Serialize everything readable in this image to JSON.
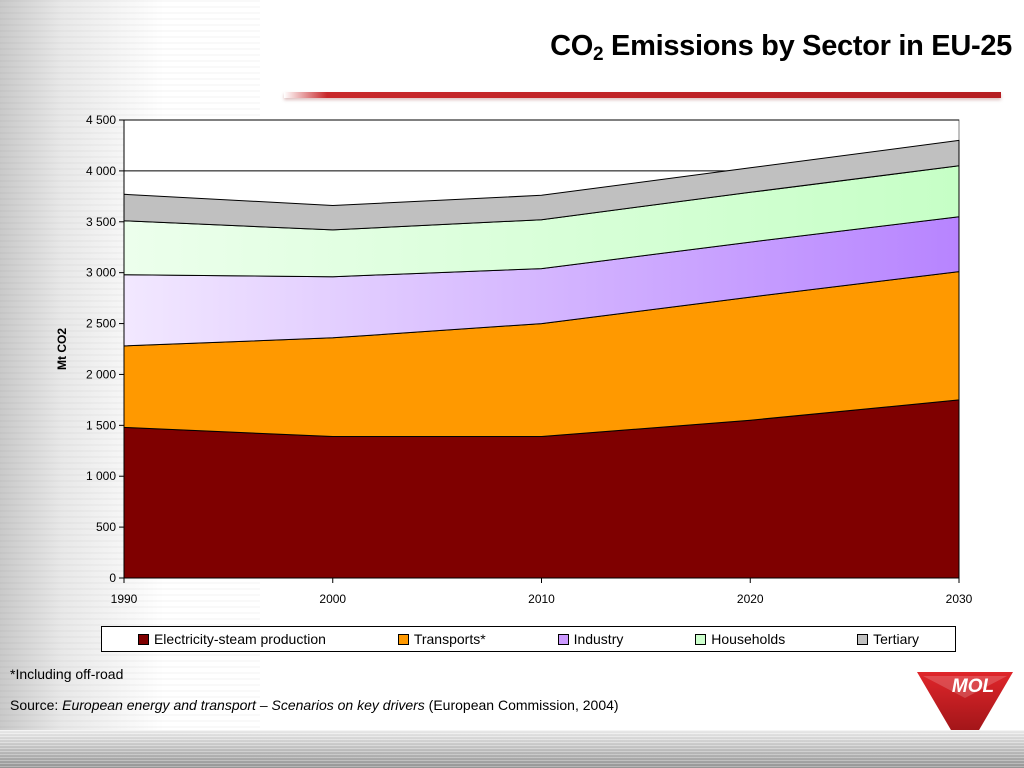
{
  "slide": {
    "title_main": "CO",
    "title_sub": "2",
    "title_rest": " Emissions by Sector in EU-25",
    "footnote": "*Including off-road",
    "source_prefix": "Source: ",
    "source_italic": "European energy and transport – Scenarios on key drivers",
    "source_suffix": " (European Commission, 2004)",
    "logo_text": "MOL"
  },
  "chart_data": {
    "type": "area",
    "stacked": true,
    "title": "",
    "xlabel": "",
    "ylabel": "Mt CO2",
    "x": [
      1990,
      2000,
      2010,
      2020,
      2030
    ],
    "x_tick_labels": [
      "1990",
      "2000",
      "2010",
      "2020",
      "2030"
    ],
    "ylim": [
      0,
      4500
    ],
    "y_ticks": [
      0,
      500,
      1000,
      1500,
      2000,
      2500,
      3000,
      3500,
      4000,
      4500
    ],
    "y_tick_labels": [
      "0",
      "500",
      "1 000",
      "1 500",
      "2 000",
      "2 500",
      "3 000",
      "3 500",
      "4 000",
      "4 500"
    ],
    "grid": "horizontal-major",
    "legend_position": "bottom",
    "series": [
      {
        "name": "Electricity-steam production",
        "color": "#7f0000",
        "values": [
          1480,
          1390,
          1390,
          1550,
          1750
        ]
      },
      {
        "name": "Transports*",
        "color": "#ff9900",
        "values": [
          800,
          970,
          1110,
          1210,
          1260
        ]
      },
      {
        "name": "Industry",
        "color": "#cc99ff",
        "values": [
          700,
          600,
          540,
          540,
          540
        ]
      },
      {
        "name": "Households",
        "color": "#ccffcc",
        "values": [
          530,
          460,
          480,
          490,
          500
        ]
      },
      {
        "name": "Tertiary",
        "color": "#c0c0c0",
        "values": [
          260,
          240,
          240,
          240,
          250
        ]
      }
    ]
  }
}
